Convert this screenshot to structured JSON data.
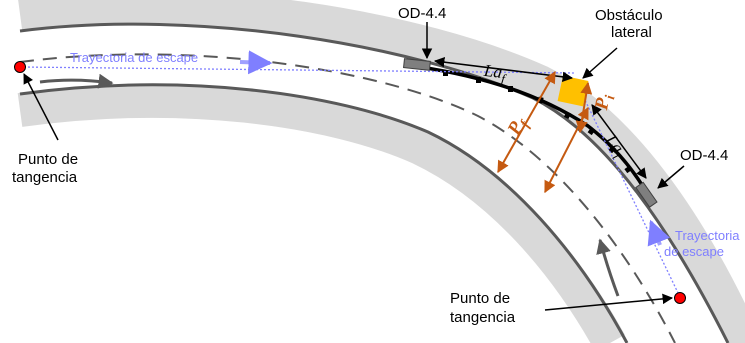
{
  "labels": {
    "od_top": "OD-4.4",
    "od_right": "OD-4.4",
    "obstacle_line1": "Obstáculo",
    "obstacle_line2": "lateral",
    "escape_top": "Trayectoria de escape",
    "escape_right_line1": "Trayectoria",
    "escape_right_line2": "de escape",
    "tangency_left_line1": "Punto de",
    "tangency_left_line2": "tangencia",
    "tangency_bottom_line1": "Punto de",
    "tangency_bottom_line2": "tangencia",
    "la_f": "La",
    "la_f_sub": "f",
    "la_i": "La",
    "la_i_sub": "i",
    "p_f": "P",
    "p_f_sub": "f",
    "p_i": "P",
    "p_i_sub": "i"
  },
  "colors": {
    "road": "#d9d9d9",
    "road_edge": "#595959",
    "escape_path": "#7f7fff",
    "distance_arrow": "#c55a11",
    "obstacle": "#ffc000",
    "tangency_point": "#ff0000",
    "attenuator": "#7f7f7f"
  }
}
